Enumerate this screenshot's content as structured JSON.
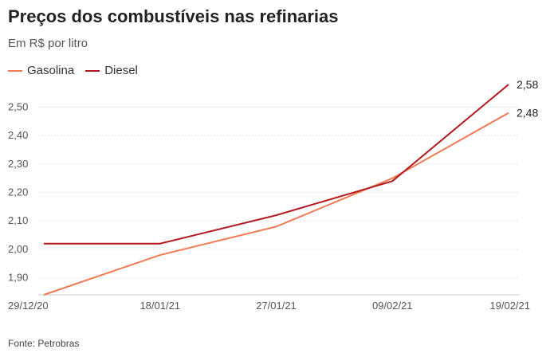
{
  "header": {
    "title": "Preços dos combustíveis nas refinarias",
    "subtitle": "Em R$ por litro"
  },
  "source": "Fonte: Petrobras",
  "chart_data": {
    "type": "line",
    "title": "Preços dos combustíveis nas refinarias",
    "subtitle": "Em R$ por litro",
    "x": [
      "29/12/20",
      "18/01/21",
      "27/01/21",
      "09/02/21",
      "19/02/21"
    ],
    "ylim": [
      1.84,
      2.58
    ],
    "yticks": [
      "1,90",
      "2,00",
      "2,10",
      "2,20",
      "2,30",
      "2,40",
      "2,50"
    ],
    "ytick_values": [
      1.9,
      2.0,
      2.1,
      2.2,
      2.3,
      2.4,
      2.5
    ],
    "grid": true,
    "legend_position": "top-left",
    "series": [
      {
        "name": "Gasolina",
        "color": "#f07a55",
        "values": [
          1.84,
          1.98,
          2.08,
          2.25,
          2.48
        ],
        "end_label": "2,48"
      },
      {
        "name": "Diesel",
        "color": "#b3191e",
        "values": [
          2.02,
          2.02,
          2.12,
          2.24,
          2.58
        ],
        "end_label": "2,58"
      }
    ]
  }
}
